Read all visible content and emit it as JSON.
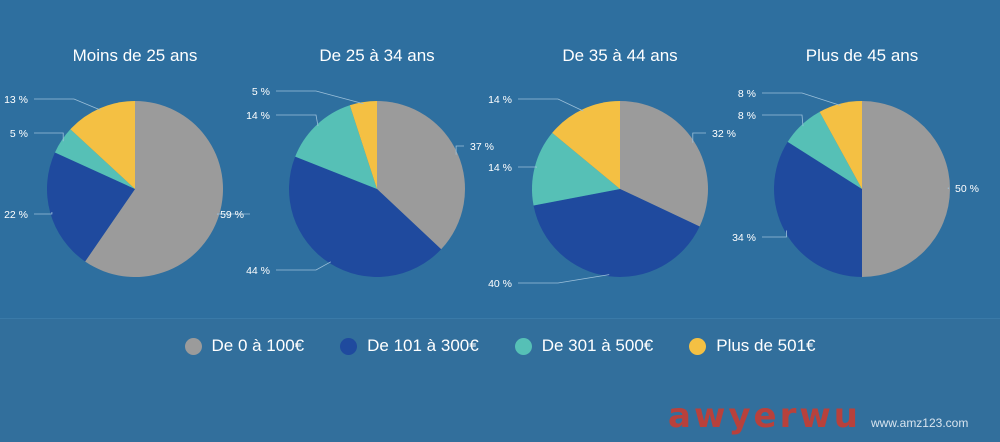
{
  "chart_data": [
    {
      "type": "pie",
      "title": "Moins de 25 ans",
      "categories": [
        "De 0 à 100€",
        "De 101 à 300€",
        "De 301 à 500€",
        "Plus de 501€"
      ],
      "values": [
        59,
        22,
        5,
        13
      ],
      "labels": [
        "59 %",
        "22 %",
        "5 %",
        "13 %"
      ]
    },
    {
      "type": "pie",
      "title": "De 25 à 34 ans",
      "categories": [
        "De 0 à 100€",
        "De 101 à 300€",
        "De 301 à 500€",
        "Plus de 501€"
      ],
      "values": [
        37,
        44,
        14,
        5
      ],
      "labels": [
        "37 %",
        "44 %",
        "14 %",
        "5 %"
      ]
    },
    {
      "type": "pie",
      "title": "De 35 à 44 ans",
      "categories": [
        "De 0 à 100€",
        "De 101 à 300€",
        "De 301 à 500€",
        "Plus de 501€"
      ],
      "values": [
        32,
        40,
        14,
        14
      ],
      "labels": [
        "32 %",
        "40 %",
        "14 %",
        "14 %"
      ]
    },
    {
      "type": "pie",
      "title": "Plus de 45 ans",
      "categories": [
        "De 0 à 100€",
        "De 101 à 300€",
        "De 301 à 500€",
        "Plus de 501€"
      ],
      "values": [
        50,
        34,
        8,
        8
      ],
      "labels": [
        "50 %",
        "34 %",
        "8 %",
        "8 %"
      ]
    }
  ],
  "legend": {
    "items": [
      {
        "label": "De 0 à 100€",
        "color": "#9b9b9b"
      },
      {
        "label": "De 101 à 300€",
        "color": "#1f4a9e"
      },
      {
        "label": "De 301 à 500€",
        "color": "#56c0b6"
      },
      {
        "label": "Plus de 501€",
        "color": "#f4c043"
      }
    ]
  },
  "watermark": {
    "logo": "awyerwu",
    "url": "www.amz123.com"
  }
}
